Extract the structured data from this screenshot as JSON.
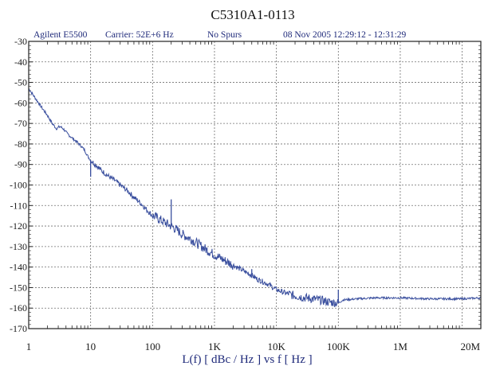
{
  "chart_data": {
    "type": "line",
    "title": "C5310A1-0113",
    "header_left": "Agilent E5500",
    "header_carrier": "Carrier: 52E+6 Hz",
    "header_spurs": "No Spurs",
    "header_date": "08 Nov 2005  12:29:12 - 12:31:29",
    "xlabel": "L(f)  [ dBc / Hz ]  vs  f  [ Hz ]",
    "ylabel": "",
    "x_scale": "log",
    "xlim": [
      1,
      20000000
    ],
    "ylim": [
      -170,
      -30
    ],
    "grid": true,
    "x_tick_labels": [
      "1",
      "10",
      "100",
      "1K",
      "10K",
      "100K",
      "1M",
      "20M"
    ],
    "x_tick_values": [
      1,
      10,
      100,
      1000,
      10000,
      100000,
      1000000,
      20000000
    ],
    "y_tick_values": [
      -30,
      -40,
      -50,
      -60,
      -70,
      -80,
      -90,
      -100,
      -110,
      -120,
      -130,
      -140,
      -150,
      -160,
      -170
    ],
    "colors": {
      "trace": "#3a4f9e",
      "grid": "#707070",
      "frame": "#222222"
    },
    "series": [
      {
        "points": [
          [
            1,
            -53
          ],
          [
            1.3,
            -58
          ],
          [
            1.6,
            -62
          ],
          [
            2,
            -66
          ],
          [
            2.4,
            -70
          ],
          [
            2.8,
            -72.5
          ],
          [
            3.2,
            -71.5
          ],
          [
            3.6,
            -72.5
          ],
          [
            4.2,
            -75
          ],
          [
            5,
            -77
          ],
          [
            6,
            -79
          ],
          [
            7,
            -81
          ],
          [
            8,
            -83
          ],
          [
            9,
            -86
          ],
          [
            10,
            -88
          ],
          [
            12,
            -90
          ],
          [
            15,
            -93
          ],
          [
            20,
            -96
          ],
          [
            25,
            -98
          ],
          [
            30,
            -100
          ],
          [
            40,
            -103
          ],
          [
            50,
            -106
          ],
          [
            60,
            -108
          ],
          [
            70,
            -110
          ],
          [
            80,
            -112
          ],
          [
            100,
            -115
          ],
          [
            120,
            -116
          ],
          [
            150,
            -118
          ],
          [
            200,
            -120
          ],
          [
            250,
            -122
          ],
          [
            300,
            -124
          ],
          [
            400,
            -126
          ],
          [
            500,
            -128
          ],
          [
            700,
            -131
          ],
          [
            1000,
            -134
          ],
          [
            1500,
            -137
          ],
          [
            2000,
            -139
          ],
          [
            3000,
            -142
          ],
          [
            4000,
            -144
          ],
          [
            5000,
            -146
          ],
          [
            7000,
            -148
          ],
          [
            10000,
            -151
          ],
          [
            15000,
            -153
          ],
          [
            20000,
            -154
          ],
          [
            30000,
            -155
          ],
          [
            50000,
            -156
          ],
          [
            70000,
            -157
          ],
          [
            100000,
            -157.5
          ],
          [
            120000,
            -156
          ],
          [
            200000,
            -155.5
          ],
          [
            400000,
            -155
          ],
          [
            1000000,
            -155
          ],
          [
            3000000,
            -155.5
          ],
          [
            10000000,
            -155.5
          ],
          [
            20000000,
            -155
          ]
        ]
      }
    ],
    "spurs": [
      {
        "x": 10,
        "y": -96
      },
      {
        "x": 200,
        "y": -107
      },
      {
        "x": 4000,
        "y": -141
      },
      {
        "x": 5500,
        "y": -146
      },
      {
        "x": 100000,
        "y": -151
      }
    ]
  }
}
